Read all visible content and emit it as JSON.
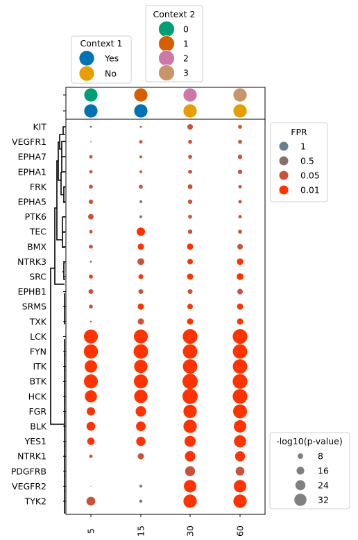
{
  "chart_data": {
    "type": "dot-matrix",
    "genes": [
      "KIT",
      "VEGFR1",
      "EPHA7",
      "EPHA1",
      "FRK",
      "EPHA5",
      "PTK6",
      "TEC",
      "BMX",
      "NTRK3",
      "SRC",
      "EPHB1",
      "SRMS",
      "TXK",
      "LCK",
      "FYN",
      "ITK",
      "BTK",
      "HCK",
      "FGR",
      "BLK",
      "YES1",
      "NTRK1",
      "PDGFRB",
      "VEGFR2",
      "TYK2"
    ],
    "x_categories": [
      "5",
      "15",
      "30",
      "60"
    ],
    "context1": {
      "title": "Context 1",
      "entries": [
        {
          "label": "Yes",
          "color": "#0072B2"
        },
        {
          "label": "No",
          "color": "#E69F00"
        }
      ],
      "values": [
        "Yes",
        "Yes",
        "No",
        "No"
      ]
    },
    "context2": {
      "title": "Context 2",
      "entries": [
        {
          "label": "0",
          "color": "#009E73"
        },
        {
          "label": "1",
          "color": "#D55E00"
        },
        {
          "label": "2",
          "color": "#CC79A7"
        },
        {
          "label": "3",
          "color": "#C8956A"
        }
      ],
      "values": [
        "0",
        "1",
        "2",
        "3"
      ]
    },
    "fpr_legend": {
      "title": "FPR",
      "entries": [
        {
          "label": "1",
          "color": "#6A7F8E"
        },
        {
          "label": "0.5",
          "color": "#85706A"
        },
        {
          "label": "0.05",
          "color": "#C9533A"
        },
        {
          "label": "0.01",
          "color": "#FF3300"
        }
      ]
    },
    "size_legend": {
      "title": "-log10(p-value)",
      "values": [
        8,
        16,
        24,
        32
      ],
      "labels": [
        "8",
        "16",
        "24",
        "32"
      ]
    },
    "neglog10p": [
      [
        0.5,
        0.5,
        4,
        2
      ],
      [
        0.2,
        1.5,
        2,
        2
      ],
      [
        1.5,
        1,
        2,
        2.5
      ],
      [
        1.5,
        1,
        2,
        2.5
      ],
      [
        2,
        2,
        3,
        1.5
      ],
      [
        2.5,
        1,
        2.5,
        1.5
      ],
      [
        4,
        1,
        2,
        1.5
      ],
      [
        1.5,
        9,
        2.5,
        2
      ],
      [
        2,
        5,
        5,
        4
      ],
      [
        0.5,
        6,
        4,
        5.5
      ],
      [
        2,
        3,
        5,
        6
      ],
      [
        3,
        3,
        3,
        4
      ],
      [
        2,
        5,
        4,
        5
      ],
      [
        0.4,
        5,
        5,
        5
      ],
      [
        25,
        25,
        28,
        28
      ],
      [
        26,
        27,
        27,
        27
      ],
      [
        20,
        23,
        27,
        27
      ],
      [
        25,
        25,
        30,
        28
      ],
      [
        19,
        23,
        30,
        28
      ],
      [
        9,
        14,
        23,
        25
      ],
      [
        10,
        12,
        23,
        20
      ],
      [
        7,
        11,
        16,
        19
      ],
      [
        1.5,
        5,
        14,
        13
      ],
      [
        0,
        0,
        13,
        10
      ],
      [
        0.1,
        1,
        20,
        20
      ],
      [
        10,
        1.2,
        23,
        23
      ]
    ],
    "fpr": [
      [
        0.5,
        0.5,
        0.05,
        0.05
      ],
      [
        0.5,
        0.05,
        0.05,
        0.05
      ],
      [
        0.05,
        0.05,
        0.05,
        0.05
      ],
      [
        0.05,
        0.05,
        0.05,
        0.05
      ],
      [
        0.05,
        0.05,
        0.05,
        0.05
      ],
      [
        0.05,
        0.5,
        0.05,
        0.05
      ],
      [
        0.05,
        0.5,
        0.05,
        0.05
      ],
      [
        0.05,
        0.01,
        0.05,
        0.05
      ],
      [
        0.05,
        0.01,
        0.01,
        0.05
      ],
      [
        0.5,
        0.05,
        0.01,
        0.01
      ],
      [
        0.01,
        0.01,
        0.01,
        0.01
      ],
      [
        0.05,
        0.05,
        0.05,
        0.05
      ],
      [
        0.05,
        0.01,
        0.01,
        0.01
      ],
      [
        0.5,
        0.05,
        0.01,
        0.01
      ],
      [
        0.01,
        0.01,
        0.01,
        0.01
      ],
      [
        0.01,
        0.01,
        0.01,
        0.01
      ],
      [
        0.01,
        0.01,
        0.01,
        0.01
      ],
      [
        0.01,
        0.01,
        0.01,
        0.01
      ],
      [
        0.01,
        0.01,
        0.01,
        0.01
      ],
      [
        0.01,
        0.01,
        0.01,
        0.01
      ],
      [
        0.01,
        0.01,
        0.01,
        0.01
      ],
      [
        0.01,
        0.01,
        0.01,
        0.01
      ],
      [
        0.05,
        0.05,
        0.01,
        0.01
      ],
      [
        0.5,
        0.5,
        0.05,
        0.05
      ],
      [
        0.5,
        0.5,
        0.01,
        0.01
      ],
      [
        0.05,
        0.5,
        0.01,
        0.01
      ]
    ],
    "dendrogram": true,
    "grid": false
  }
}
